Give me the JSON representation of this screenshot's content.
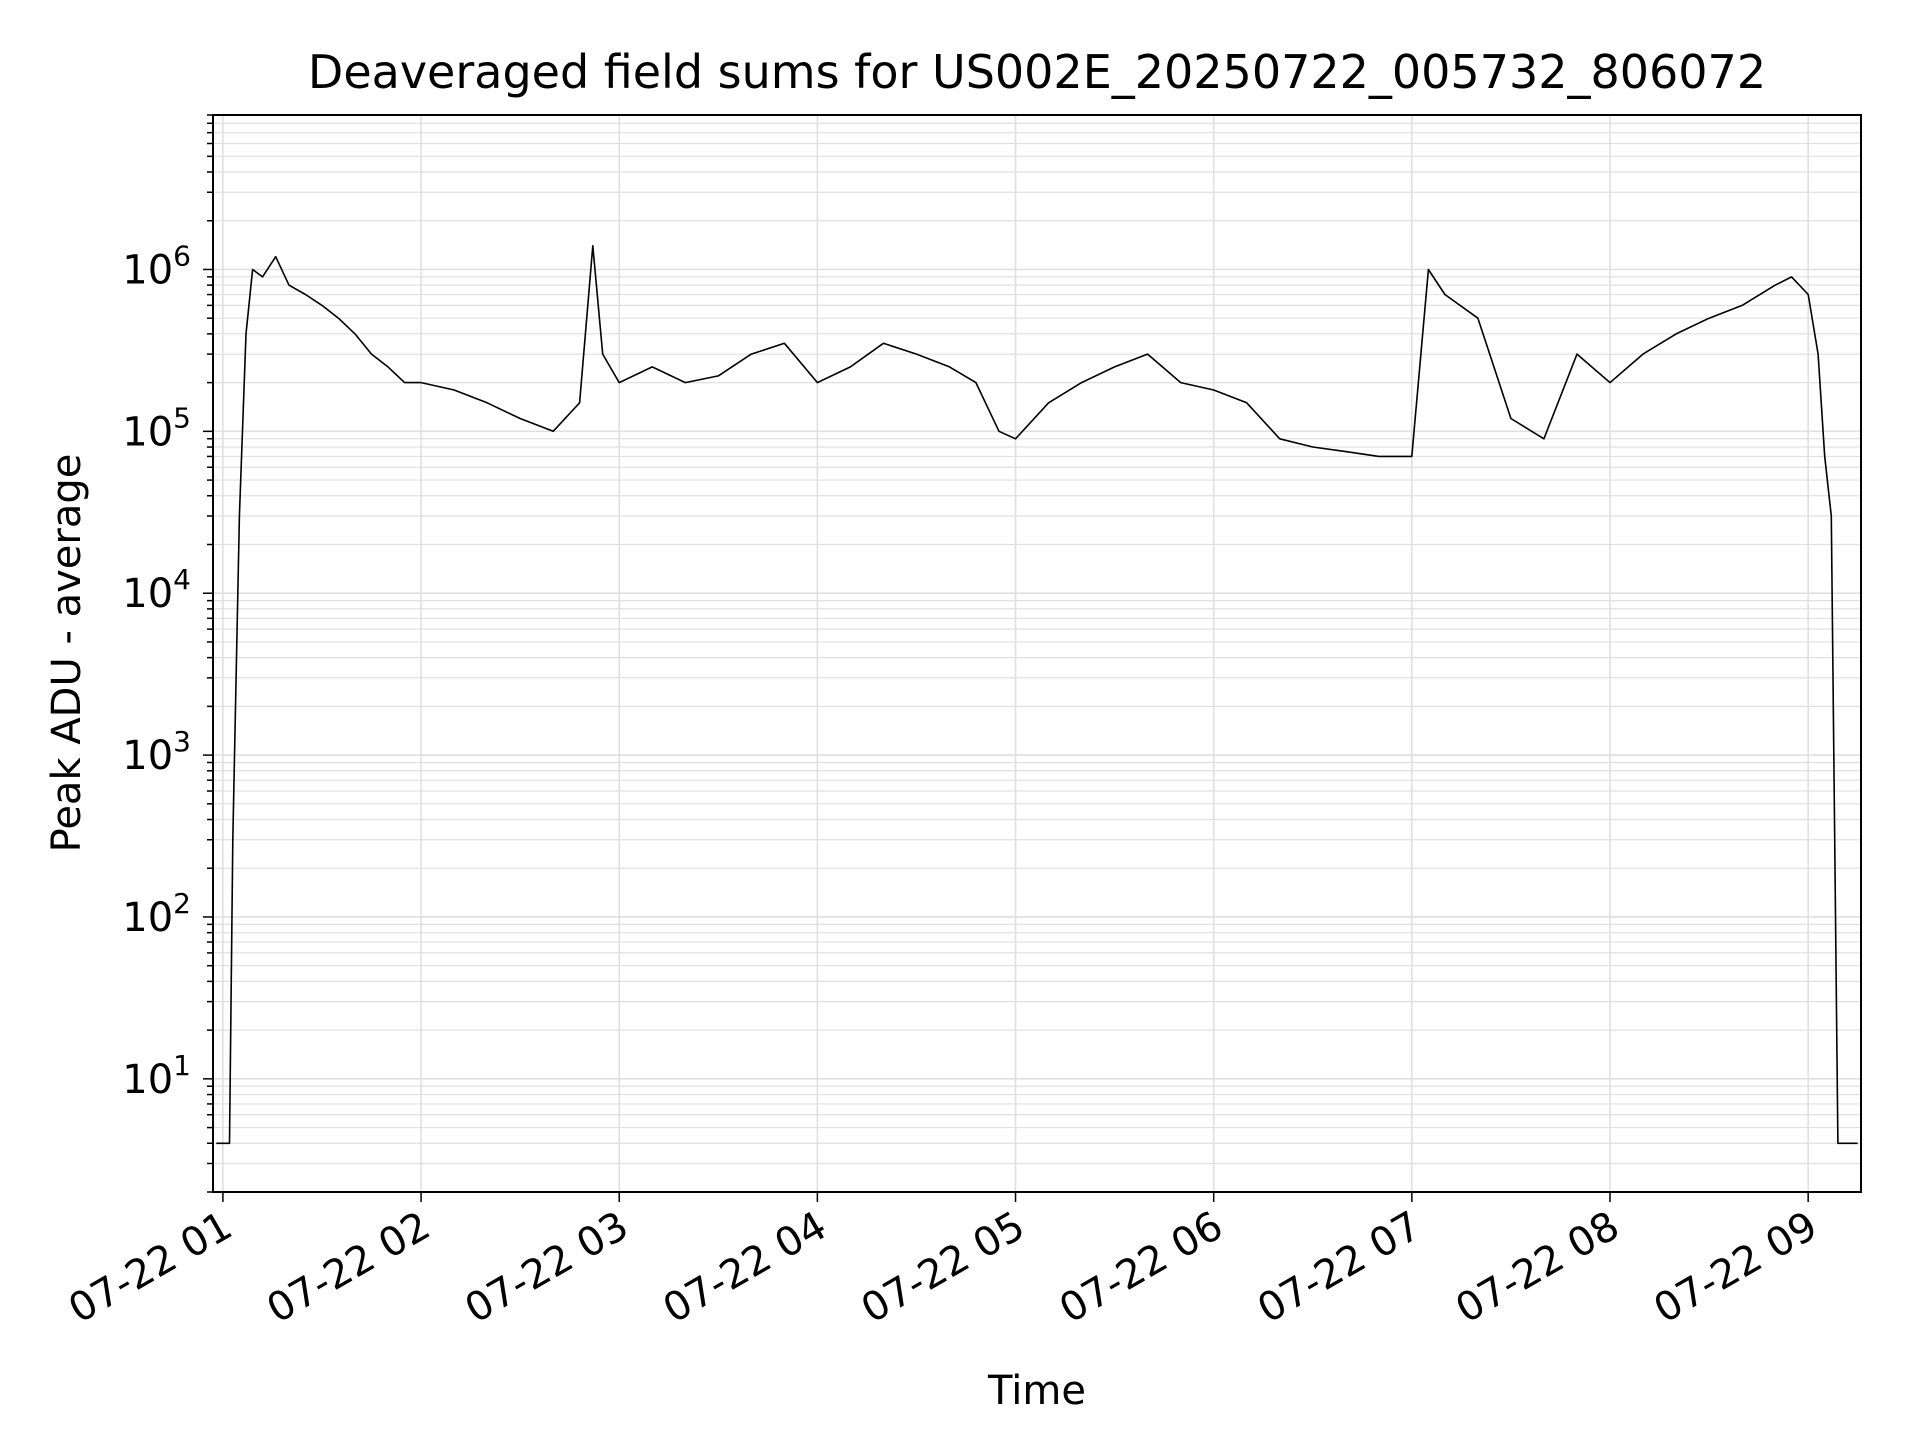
{
  "chart_data": {
    "type": "line",
    "title": "Deaveraged field sums for US002E_20250722_005732_806072",
    "xlabel": "Time",
    "ylabel": "Peak ADU - average",
    "yscale": "log",
    "ylim": [
      2,
      9000000
    ],
    "xlim": [
      "07-22 00:57",
      "07-22 09:16"
    ],
    "grid": true,
    "line_color": "#000000",
    "grid_color": "#e0e0e0",
    "x_ticks": [
      "07-22 01",
      "07-22 02",
      "07-22 03",
      "07-22 04",
      "07-22 05",
      "07-22 06",
      "07-22 07",
      "07-22 08",
      "07-22 09"
    ],
    "y_ticks": [
      {
        "base": "10",
        "exp": "1",
        "value": 10
      },
      {
        "base": "10",
        "exp": "2",
        "value": 100
      },
      {
        "base": "10",
        "exp": "3",
        "value": 1000
      },
      {
        "base": "10",
        "exp": "4",
        "value": 10000
      },
      {
        "base": "10",
        "exp": "5",
        "value": 100000
      },
      {
        "base": "10",
        "exp": "6",
        "value": 1000000
      }
    ],
    "series": [
      {
        "x": [
          "07-22 00:58",
          "07-22 01:02",
          "07-22 01:03",
          "07-22 01:05",
          "07-22 01:07",
          "07-22 01:09",
          "07-22 01:12",
          "07-22 01:16",
          "07-22 01:20",
          "07-22 01:25",
          "07-22 01:30",
          "07-22 01:35",
          "07-22 01:40",
          "07-22 01:45",
          "07-22 01:50",
          "07-22 01:55",
          "07-22 02:00",
          "07-22 02:10",
          "07-22 02:20",
          "07-22 02:30",
          "07-22 02:40",
          "07-22 02:48",
          "07-22 02:52",
          "07-22 02:55",
          "07-22 03:00",
          "07-22 03:10",
          "07-22 03:20",
          "07-22 03:30",
          "07-22 03:40",
          "07-22 03:50",
          "07-22 04:00",
          "07-22 04:10",
          "07-22 04:20",
          "07-22 04:30",
          "07-22 04:40",
          "07-22 04:48",
          "07-22 04:55",
          "07-22 05:00",
          "07-22 05:10",
          "07-22 05:20",
          "07-22 05:30",
          "07-22 05:40",
          "07-22 05:50",
          "07-22 06:00",
          "07-22 06:10",
          "07-22 06:20",
          "07-22 06:30",
          "07-22 06:40",
          "07-22 06:50",
          "07-22 07:00",
          "07-22 07:05",
          "07-22 07:10",
          "07-22 07:20",
          "07-22 07:30",
          "07-22 07:40",
          "07-22 07:50",
          "07-22 08:00",
          "07-22 08:10",
          "07-22 08:20",
          "07-22 08:30",
          "07-22 08:40",
          "07-22 08:50",
          "07-22 08:55",
          "07-22 09:00",
          "07-22 09:03",
          "07-22 09:05",
          "07-22 09:07",
          "07-22 09:09",
          "07-22 09:11",
          "07-22 09:15"
        ],
        "y": [
          4,
          4,
          300,
          30000,
          400000,
          1000000,
          900000,
          1200000,
          800000,
          700000,
          600000,
          500000,
          400000,
          300000,
          250000,
          200000,
          200000,
          180000,
          150000,
          120000,
          100000,
          150000,
          1400000,
          300000,
          200000,
          250000,
          200000,
          220000,
          300000,
          350000,
          200000,
          250000,
          350000,
          300000,
          250000,
          200000,
          100000,
          90000,
          150000,
          200000,
          250000,
          300000,
          200000,
          180000,
          150000,
          90000,
          80000,
          75000,
          70000,
          70000,
          1000000,
          700000,
          500000,
          120000,
          90000,
          300000,
          200000,
          300000,
          400000,
          500000,
          600000,
          800000,
          900000,
          700000,
          300000,
          70000,
          30000,
          4,
          4,
          4
        ]
      }
    ]
  }
}
